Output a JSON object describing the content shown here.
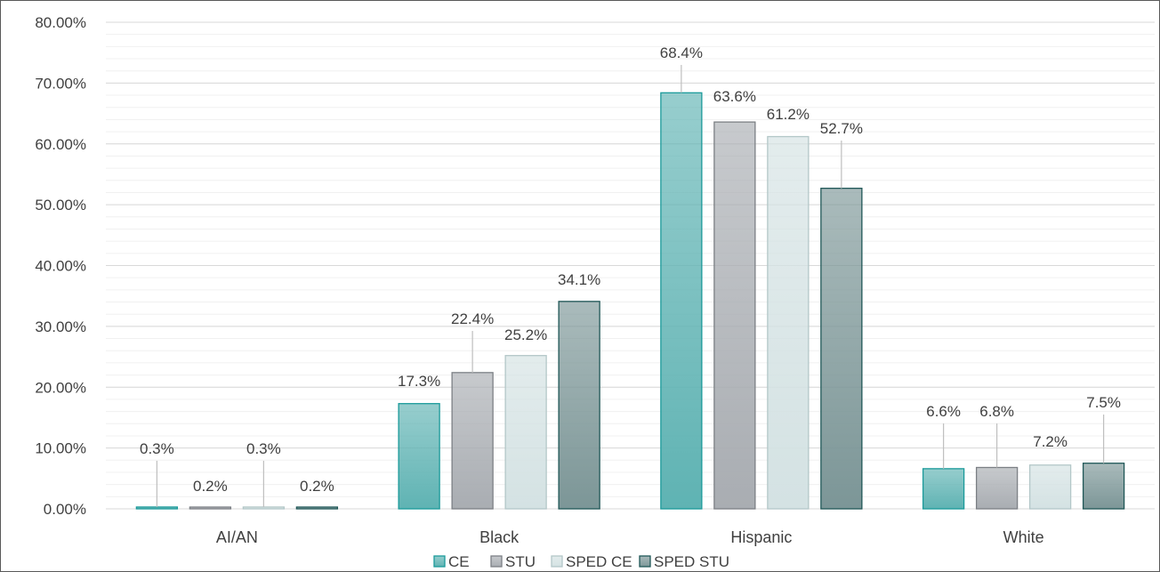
{
  "chart_data": {
    "type": "bar",
    "title": "",
    "xlabel": "",
    "ylabel": "",
    "ylim": [
      0,
      0.8
    ],
    "y_ticks": [
      "0.00%",
      "10.00%",
      "20.00%",
      "30.00%",
      "40.00%",
      "50.00%",
      "60.00%",
      "70.00%",
      "80.00%"
    ],
    "grid": true,
    "minor_grid": true,
    "legend_position": "bottom",
    "categories": [
      "AI/AN",
      "Black",
      "Hispanic",
      "White"
    ],
    "series": [
      {
        "name": "CE",
        "values": [
          0.003,
          0.173,
          0.684,
          0.066
        ],
        "labels": [
          "0.3%",
          "17.3%",
          "68.4%",
          "6.6%"
        ],
        "color": "#5fb3b3",
        "border": "#1a9a9a"
      },
      {
        "name": "STU",
        "values": [
          0.002,
          0.224,
          0.636,
          0.068
        ],
        "labels": [
          "0.2%",
          "22.4%",
          "63.6%",
          "6.8%"
        ],
        "color": "#a9adb2",
        "border": "#7c8085"
      },
      {
        "name": "SPED CE",
        "values": [
          0.003,
          0.252,
          0.612,
          0.072
        ],
        "labels": [
          "0.3%",
          "25.2%",
          "61.2%",
          "7.2%"
        ],
        "color": "#d4e2e3",
        "border": "#b3c7c8"
      },
      {
        "name": "SPED STU",
        "values": [
          0.002,
          0.341,
          0.527,
          0.075
        ],
        "labels": [
          "0.2%",
          "34.1%",
          "52.7%",
          "7.5%"
        ],
        "color": "#7c9697",
        "border": "#1f5757"
      }
    ]
  }
}
